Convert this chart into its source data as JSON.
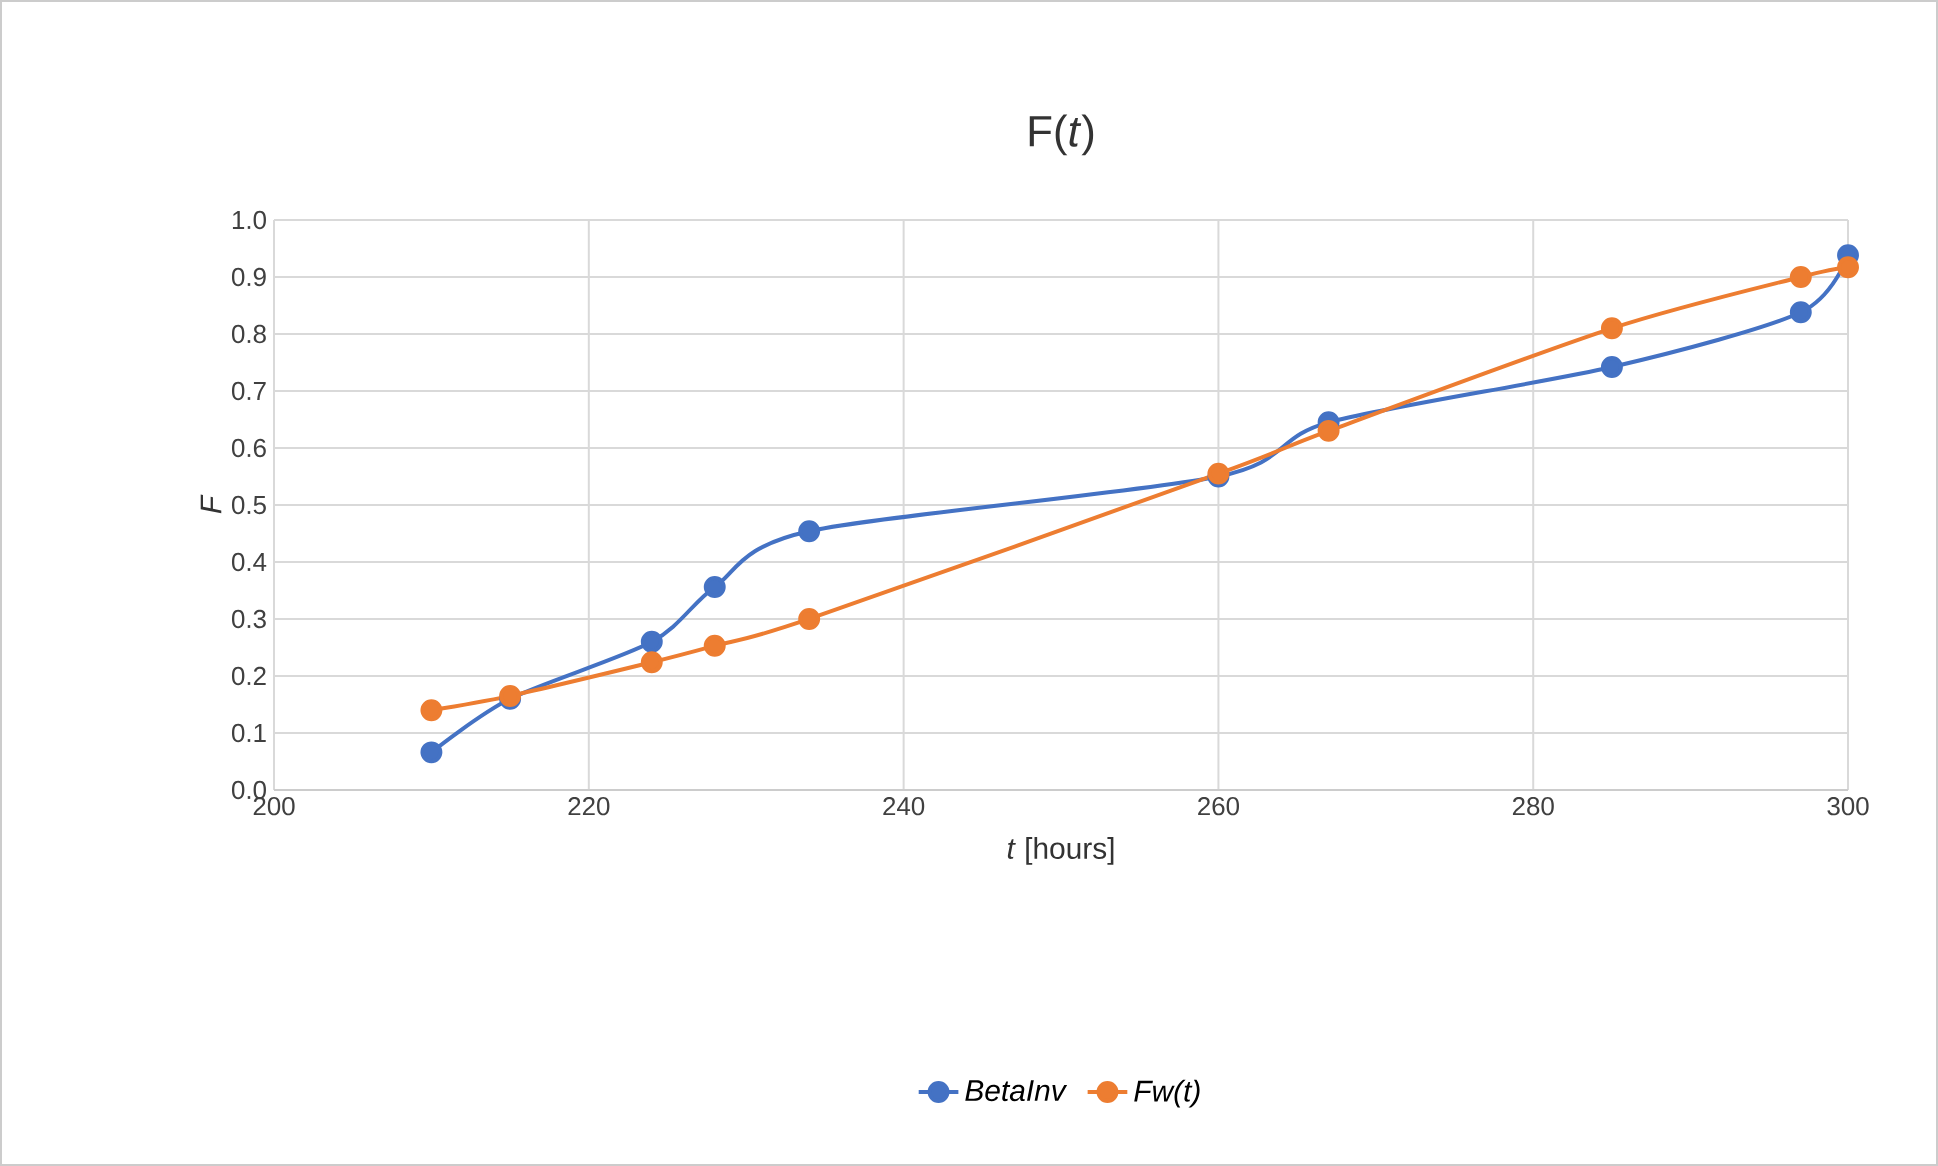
{
  "chart_data": {
    "type": "line",
    "title": "F(*t*)",
    "xlabel": "*t* [hours]",
    "ylabel": "F",
    "xlim": [
      200,
      300
    ],
    "xticks": [
      200,
      220,
      240,
      260,
      280,
      300
    ],
    "ylim": [
      0,
      1
    ],
    "yticks": [
      {
        "value": 0,
        "label": "0.0"
      },
      {
        "value": 0.1,
        "label": "0.1"
      },
      {
        "value": 0.2,
        "label": "0.2"
      },
      {
        "value": 0.3,
        "label": "0.3"
      },
      {
        "value": 0.4,
        "label": "0.4"
      },
      {
        "value": 0.5,
        "label": "0.5"
      },
      {
        "value": 0.6,
        "label": "0.6"
      },
      {
        "value": 0.7,
        "label": "0.7"
      },
      {
        "value": 0.8,
        "label": "0.8"
      },
      {
        "value": 0.9,
        "label": "0.9"
      },
      {
        "value": 1,
        "label": "1.0"
      }
    ],
    "x": [
      210,
      215,
      224,
      228,
      234,
      260,
      267,
      285,
      297,
      300
    ],
    "series": [
      {
        "name": "BetaInv",
        "color": "#4472c4",
        "values": [
          0.066,
          0.16,
          0.26,
          0.356,
          0.454,
          0.55,
          0.645,
          0.742,
          0.838,
          0.938
        ]
      },
      {
        "name": "Fw(t)",
        "color": "#ed7d31",
        "values": [
          0.14,
          0.165,
          0.224,
          0.253,
          0.3,
          0.555,
          0.63,
          0.81,
          0.9,
          0.917
        ]
      }
    ],
    "grid": true,
    "legend": "bottom",
    "marker": "circle",
    "line_style": "solid"
  }
}
